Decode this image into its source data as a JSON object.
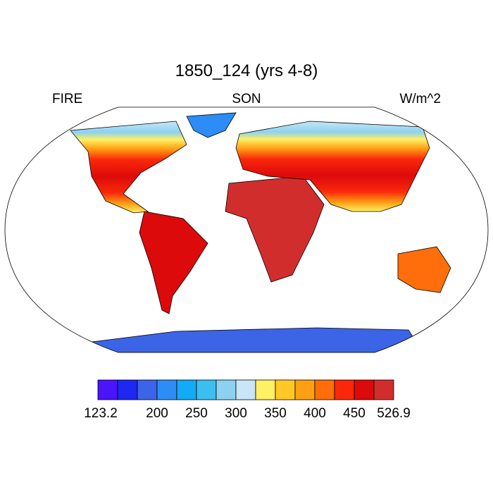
{
  "title": "1850_124 (yrs 4-8)",
  "left_label": "FIRE",
  "center_label": "SON",
  "right_label": "W/m^2",
  "colorbar": {
    "colors": [
      "#4b14fa",
      "#1e28f0",
      "#3c64e6",
      "#2d8cf5",
      "#14aaf5",
      "#3cbef0",
      "#8cd2f0",
      "#c8e6f5",
      "#fff064",
      "#ffc828",
      "#ffa014",
      "#ff6e0a",
      "#fa280a",
      "#dc0a0a",
      "#d22d2d"
    ],
    "labels": [
      "123.2",
      "200",
      "250",
      "300",
      "350",
      "400",
      "450",
      "526.9"
    ]
  }
}
